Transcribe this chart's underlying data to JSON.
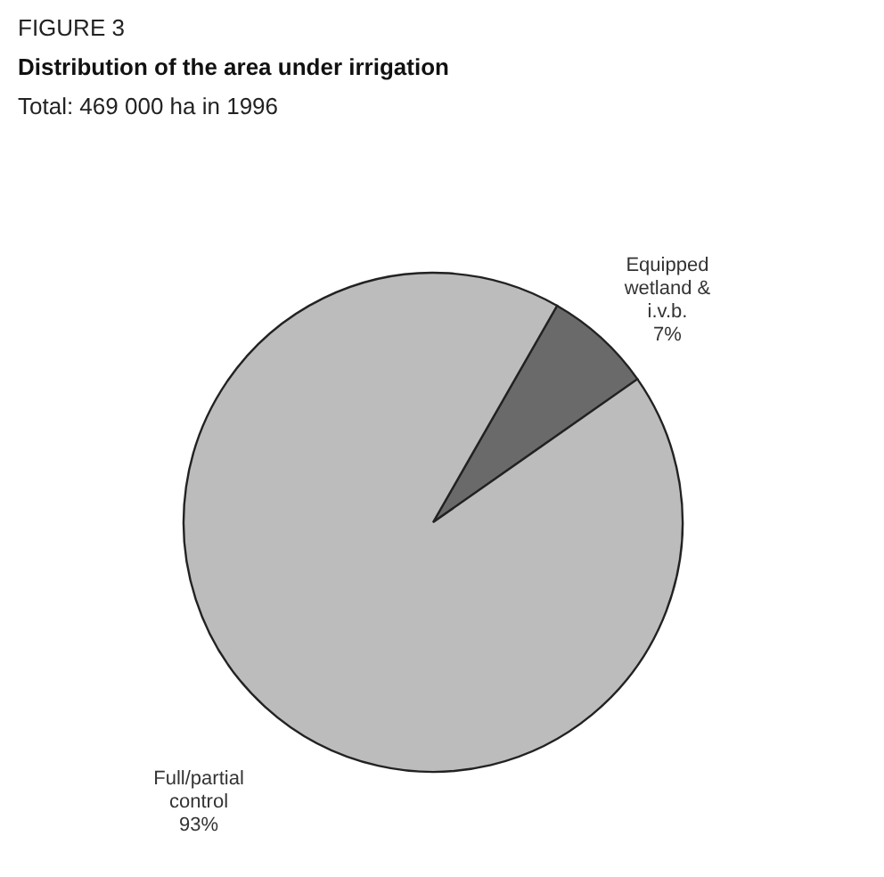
{
  "chart_data": {
    "type": "pie",
    "title": "Distribution of the area under irrigation",
    "subtitle": "Total: 469 000 ha in 1996",
    "annotations": [
      "FIGURE 3"
    ],
    "categories": [
      "Equipped wetland & i.v.b.",
      "Full/partial control"
    ],
    "values": [
      7,
      93
    ],
    "value_labels": [
      "7%",
      "93%"
    ],
    "colors": [
      "#6a6a6a",
      "#bcbcbc"
    ]
  }
}
